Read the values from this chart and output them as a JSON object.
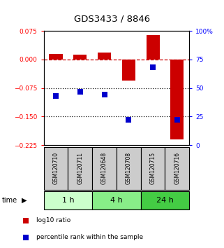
{
  "title": "GDS3433 / 8846",
  "samples": [
    "GSM120710",
    "GSM120711",
    "GSM120648",
    "GSM120708",
    "GSM120715",
    "GSM120716"
  ],
  "log10_ratio": [
    0.015,
    0.013,
    0.018,
    -0.055,
    0.065,
    -0.21
  ],
  "percentile_rank": [
    43,
    47,
    44,
    22,
    68,
    22
  ],
  "group_starts": [
    0,
    2,
    4
  ],
  "group_ends": [
    2,
    4,
    6
  ],
  "group_colors": [
    "#ccffcc",
    "#88ee88",
    "#44cc44"
  ],
  "group_labels": [
    "1 h",
    "4 h",
    "24 h"
  ],
  "ylim_left": [
    -0.225,
    0.075
  ],
  "ylim_right": [
    0,
    100
  ],
  "yticks_left": [
    0.075,
    0,
    -0.075,
    -0.15,
    -0.225
  ],
  "yticks_right": [
    100,
    75,
    50,
    25,
    0
  ],
  "bar_color": "#cc0000",
  "dot_color": "#0000cc",
  "dotted_lines": [
    -0.075,
    -0.15
  ],
  "bar_width": 0.55,
  "dot_size": 30,
  "sample_box_color": "#cccccc",
  "plot_bg_color": "#ffffff"
}
